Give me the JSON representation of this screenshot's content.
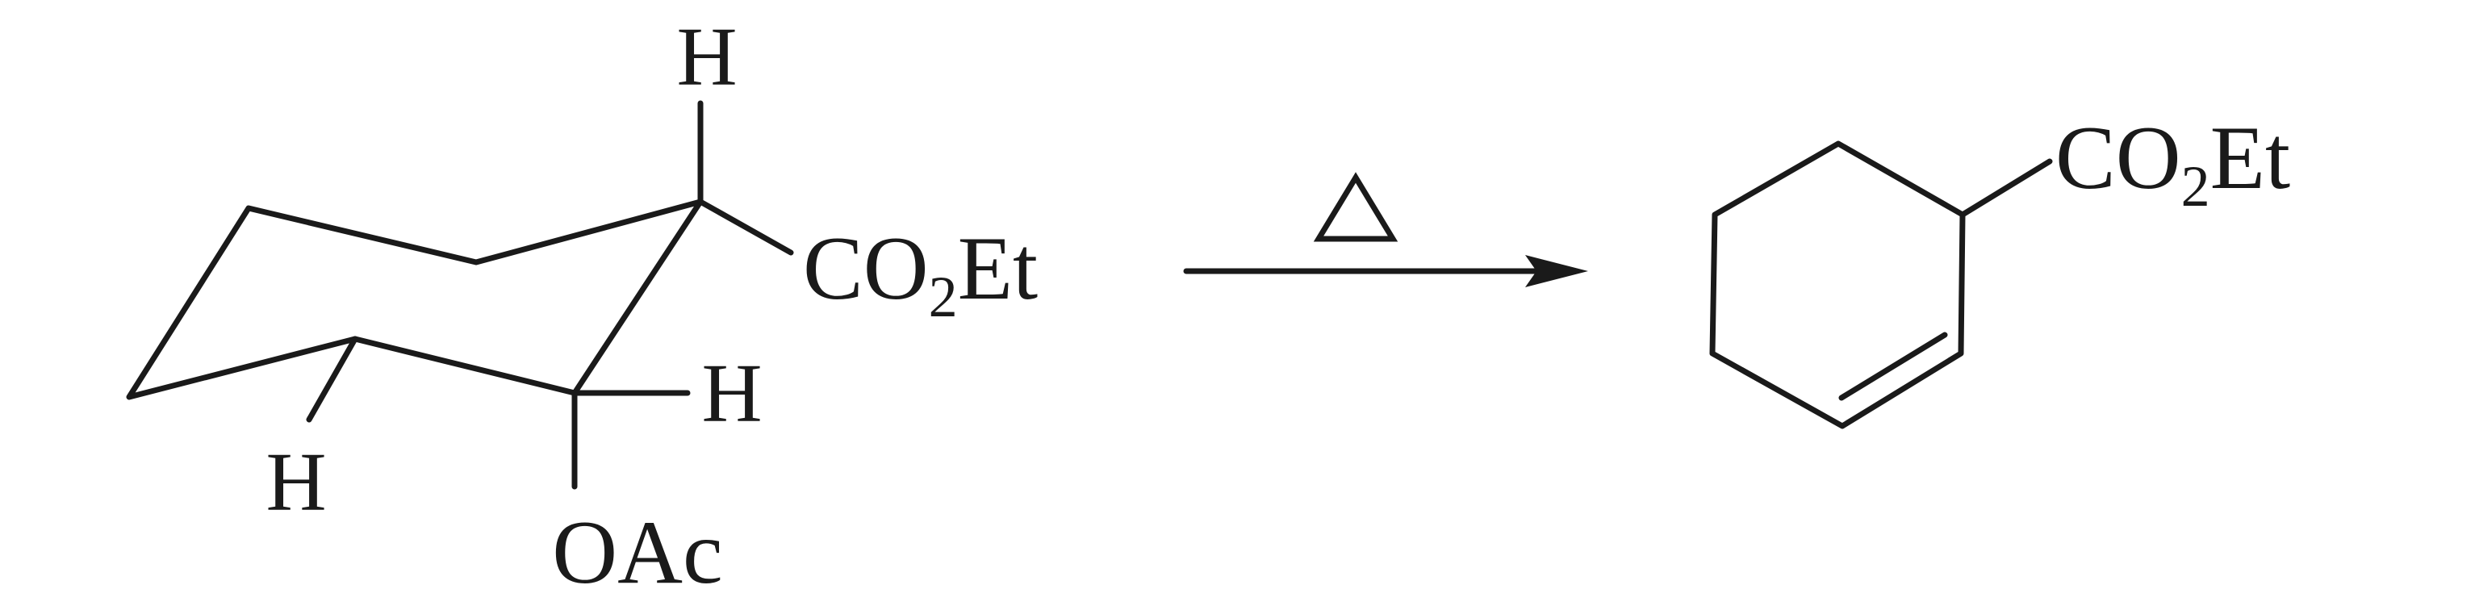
{
  "reactant": {
    "labels": {
      "h_top": "H",
      "co2et_co": "CO",
      "co2et_sub": "2",
      "co2et_et": "Et",
      "h_right": "H",
      "h_left": "H",
      "oac": "OAc"
    }
  },
  "arrow": {
    "condition_symbol": "heat-triangle"
  },
  "product": {
    "labels": {
      "co2et_co": "CO",
      "co2et_sub": "2",
      "co2et_et": "Et"
    }
  }
}
